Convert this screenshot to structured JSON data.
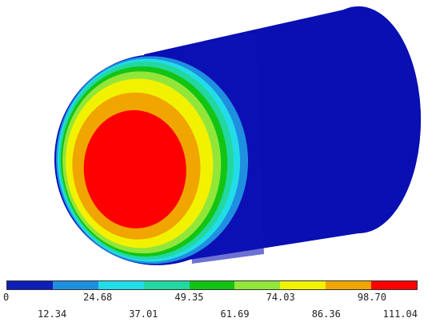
{
  "legend": {
    "labels_row1": [
      "0",
      "24.68",
      "49.35",
      "74.03",
      "98.70"
    ],
    "labels_row2": [
      "12.34",
      "37.01",
      "61.69",
      "86.36",
      "111.04"
    ],
    "bands": [
      {
        "from": "0",
        "to": "12.34",
        "color": "#0f1fb8"
      },
      {
        "from": "12.34",
        "to": "24.68",
        "color": "#1f8fe0"
      },
      {
        "from": "24.68",
        "to": "37.01",
        "color": "#22dde8"
      },
      {
        "from": "37.01",
        "to": "49.35",
        "color": "#22d8a0"
      },
      {
        "from": "49.35",
        "to": "61.69",
        "color": "#13c413"
      },
      {
        "from": "61.69",
        "to": "74.03",
        "color": "#92e63a"
      },
      {
        "from": "74.03",
        "to": "86.36",
        "color": "#f2f200"
      },
      {
        "from": "86.36",
        "to": "98.70",
        "color": "#f0a500"
      },
      {
        "from": "98.70",
        "to": "111.04",
        "color": "#ff0000"
      }
    ]
  },
  "body_color": "#0a10b4",
  "body_side_color": "#0a0ca6"
}
